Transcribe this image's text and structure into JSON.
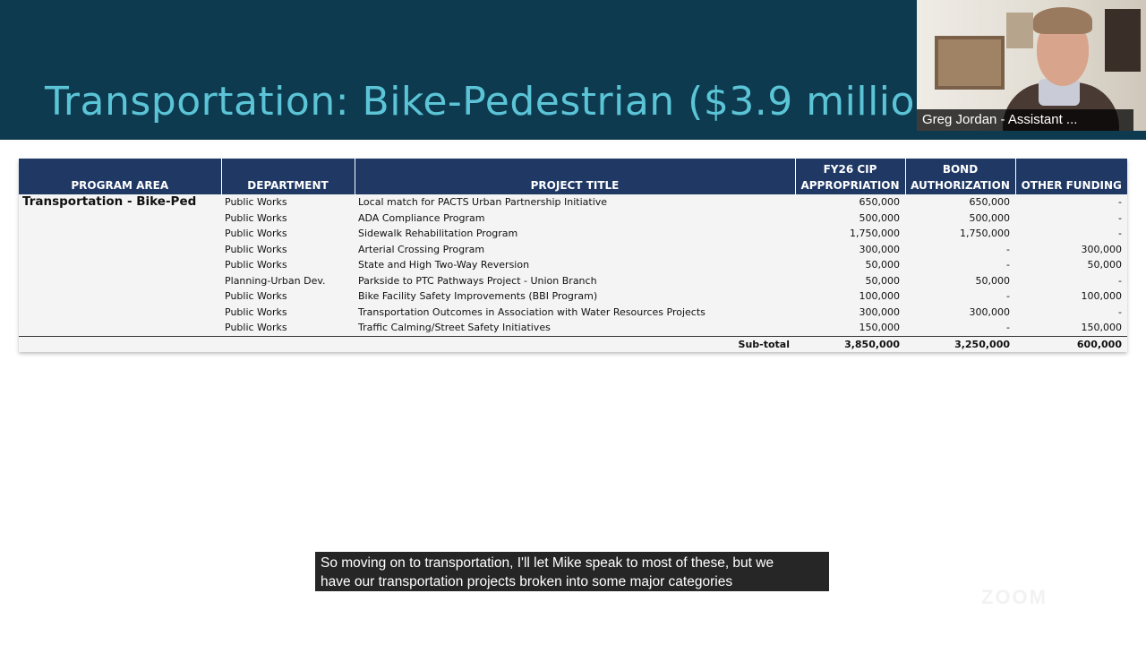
{
  "slide": {
    "title": "Transportation: Bike-Pedestrian ($3.9 millio"
  },
  "video": {
    "participant_name": "Greg Jordan - Assistant ..."
  },
  "table": {
    "headers": {
      "program_area": "PROGRAM AREA",
      "department": "DEPARTMENT",
      "project_title": "PROJECT TITLE",
      "fy26_line1": "FY26 CIP",
      "fy26_line2": "APPROPRIATION",
      "bond_line1": "BOND",
      "bond_line2": "AUTHORIZATION",
      "other": "OTHER FUNDING"
    },
    "program_area_value": "Transportation - Bike-Ped",
    "rows": [
      {
        "department": "Public Works",
        "title": "Local match for PACTS Urban Partnership Initiative",
        "fy26": "650,000",
        "bond": "650,000",
        "other": "-"
      },
      {
        "department": "Public Works",
        "title": "ADA Compliance Program",
        "fy26": "500,000",
        "bond": "500,000",
        "other": "-"
      },
      {
        "department": "Public Works",
        "title": "Sidewalk Rehabilitation Program",
        "fy26": "1,750,000",
        "bond": "1,750,000",
        "other": "-"
      },
      {
        "department": "Public Works",
        "title": "Arterial Crossing Program",
        "fy26": "300,000",
        "bond": "-",
        "other": "300,000"
      },
      {
        "department": "Public Works",
        "title": "State and High Two-Way Reversion",
        "fy26": "50,000",
        "bond": "-",
        "other": "50,000"
      },
      {
        "department": "Planning-Urban Dev.",
        "title": "Parkside to PTC Pathways Project - Union Branch",
        "fy26": "50,000",
        "bond": "50,000",
        "other": "-"
      },
      {
        "department": "Public Works",
        "title": "Bike Facility Safety Improvements (BBI Program)",
        "fy26": "100,000",
        "bond": "-",
        "other": "100,000"
      },
      {
        "department": "Public Works",
        "title": "Transportation Outcomes in Association with Water Resources Projects",
        "fy26": "300,000",
        "bond": "300,000",
        "other": "-"
      },
      {
        "department": "Public Works",
        "title": "Traffic Calming/Street Safety Initiatives",
        "fy26": "150,000",
        "bond": "-",
        "other": "150,000"
      }
    ],
    "subtotal": {
      "label": "Sub-total",
      "fy26": "3,850,000",
      "bond": "3,250,000",
      "other": "600,000"
    }
  },
  "caption": {
    "line1": "So moving on to transportation, I'll let Mike speak to most of these, but we",
    "line2": "have our transportation projects broken into some major categories"
  },
  "watermark": {
    "text": "ZOOM"
  }
}
